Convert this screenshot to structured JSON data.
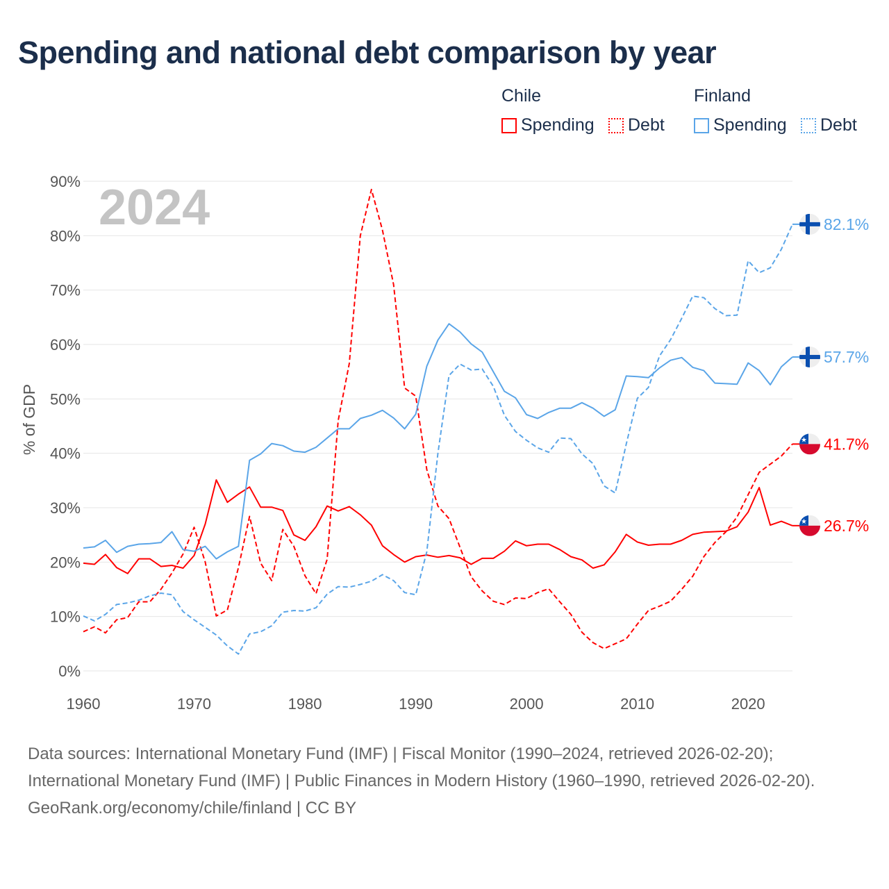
{
  "chart_data": {
    "type": "line",
    "title": "Spending and national debt comparison by year",
    "ylabel": "% of GDP",
    "xlabel": "",
    "ylim": [
      0,
      90
    ],
    "xlim": [
      1960,
      2024
    ],
    "y_ticks": [
      "0%",
      "10%",
      "20%",
      "30%",
      "40%",
      "50%",
      "60%",
      "70%",
      "80%",
      "90%"
    ],
    "x_ticks": [
      "1960",
      "1970",
      "1980",
      "1990",
      "2000",
      "2010",
      "2020"
    ],
    "year_watermark": "2024",
    "grid": true,
    "legend_placement": "top-right",
    "legend": {
      "groups": [
        {
          "name": "Chile",
          "items": [
            "Spending",
            "Debt"
          ]
        },
        {
          "name": "Finland",
          "items": [
            "Spending",
            "Debt"
          ]
        }
      ]
    },
    "x_start": 1960,
    "series": [
      {
        "name": "Chile Spending",
        "country": "Chile",
        "kind": "solid",
        "color": "#ff0000",
        "end_label": "26.7%",
        "values": [
          19.8,
          19.6,
          21.4,
          19.0,
          17.9,
          20.6,
          20.6,
          19.2,
          19.4,
          18.9,
          21.2,
          27.0,
          35.1,
          31.0,
          32.5,
          33.8,
          30.1,
          30.1,
          29.5,
          25.0,
          24.0,
          26.5,
          30.3,
          29.4,
          30.2,
          28.7,
          26.8,
          23.0,
          21.4,
          20.0,
          21.0,
          21.3,
          20.9,
          21.2,
          20.8,
          19.6,
          20.7,
          20.7,
          22.0,
          23.9,
          23.0,
          23.3,
          23.3,
          22.3,
          21.0,
          20.4,
          18.9,
          19.5,
          21.9,
          25.1,
          23.7,
          23.1,
          23.3,
          23.3,
          24.0,
          25.1,
          25.5,
          25.6,
          25.7,
          26.5,
          29.2,
          33.7,
          26.8,
          27.5,
          26.7
        ]
      },
      {
        "name": "Chile Debt",
        "country": "Chile",
        "kind": "dashed",
        "color": "#ff0000",
        "end_label": "41.7%",
        "values": [
          7.2,
          8.1,
          7.0,
          9.4,
          9.8,
          12.7,
          12.7,
          15.0,
          18.0,
          21.5,
          26.4,
          20.0,
          10.1,
          11.2,
          19.0,
          28.4,
          19.8,
          16.6,
          26.0,
          22.9,
          17.5,
          14.2,
          20.5,
          46.0,
          56.5,
          80.0,
          88.5,
          81.0,
          71.0,
          52.0,
          50.5,
          37.0,
          30.3,
          28.0,
          22.7,
          17.3,
          14.7,
          12.8,
          12.2,
          13.4,
          13.3,
          14.4,
          15.1,
          12.7,
          10.4,
          7.1,
          5.2,
          4.1,
          5.0,
          5.9,
          8.6,
          11.1,
          11.9,
          12.8,
          15.0,
          17.4,
          21.0,
          23.6,
          25.6,
          28.3,
          32.4,
          36.5,
          38.0,
          39.5,
          41.7
        ]
      },
      {
        "name": "Finland Spending",
        "country": "Finland",
        "kind": "solid",
        "color": "#5aa5e8",
        "end_label": "57.7%",
        "values": [
          22.6,
          22.8,
          24.0,
          21.8,
          22.9,
          23.3,
          23.4,
          23.6,
          25.6,
          22.3,
          22.0,
          22.9,
          20.6,
          21.9,
          22.9,
          38.7,
          39.9,
          41.8,
          41.4,
          40.4,
          40.2,
          41.1,
          42.8,
          44.5,
          44.5,
          46.4,
          47.0,
          47.9,
          46.5,
          44.5,
          47.2,
          56.0,
          60.8,
          63.8,
          62.3,
          60.1,
          58.6,
          55.0,
          51.4,
          50.2,
          47.1,
          46.4,
          47.5,
          48.3,
          48.3,
          49.3,
          48.3,
          46.8,
          48.0,
          54.2,
          54.1,
          53.9,
          55.7,
          57.1,
          57.6,
          55.8,
          55.2,
          52.9,
          52.8,
          52.7,
          56.6,
          55.2,
          52.6,
          55.9,
          57.7
        ]
      },
      {
        "name": "Finland Debt",
        "country": "Finland",
        "kind": "dashed",
        "color": "#5aa5e8",
        "end_label": "82.1%",
        "values": [
          10.1,
          9.2,
          10.4,
          12.2,
          12.5,
          13.0,
          13.8,
          14.3,
          14.0,
          10.9,
          9.4,
          8.0,
          6.6,
          4.6,
          3.1,
          6.8,
          7.2,
          8.3,
          10.8,
          11.1,
          11.0,
          11.6,
          14.1,
          15.5,
          15.4,
          15.9,
          16.5,
          17.7,
          16.6,
          14.4,
          14.0,
          21.9,
          40.0,
          54.3,
          56.4,
          55.3,
          55.5,
          52.3,
          47.0,
          44.0,
          42.4,
          41.0,
          40.2,
          42.8,
          42.7,
          39.9,
          38.1,
          34.0,
          32.7,
          41.7,
          50.1,
          52.1,
          57.9,
          60.9,
          64.8,
          68.9,
          68.6,
          66.6,
          65.3,
          65.4,
          75.4,
          73.2,
          74.1,
          77.5,
          82.1
        ]
      }
    ]
  },
  "footer": {
    "sources": "Data sources: International Monetary Fund (IMF) | Fiscal Monitor (1990–2024, retrieved 2026-02-20); International Monetary Fund (IMF) | Public Finances in Modern History (1960–1990, retrieved 2026-02-20).",
    "credit": "GeoRank.org/economy/chile/finland | CC BY"
  },
  "colors": {
    "title": "#1b2e4b",
    "chile": "#ff0000",
    "finland": "#5aa5e8",
    "flag_blue": "#0a4fb0",
    "flag_red": "#d60a2e"
  }
}
